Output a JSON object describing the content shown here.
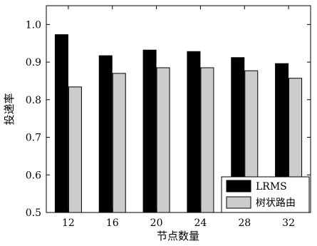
{
  "chart_data": {
    "type": "bar",
    "categories": [
      "12",
      "16",
      "20",
      "24",
      "28",
      "32"
    ],
    "series": [
      {
        "name": "LRMS",
        "values": [
          0.973,
          0.917,
          0.932,
          0.928,
          0.912,
          0.896
        ],
        "color": "#000000"
      },
      {
        "name": "树状路由",
        "values": [
          0.834,
          0.87,
          0.885,
          0.885,
          0.877,
          0.857
        ],
        "color": "#cccccc"
      }
    ],
    "title": "",
    "xlabel": "节点数量",
    "ylabel": "投递率",
    "ylim": [
      0.5,
      1.05
    ],
    "yticks": [
      "0.5",
      "0.6",
      "0.7",
      "0.8",
      "0.9",
      "1.0"
    ],
    "grid": false,
    "legend_position": "bottom-right"
  }
}
